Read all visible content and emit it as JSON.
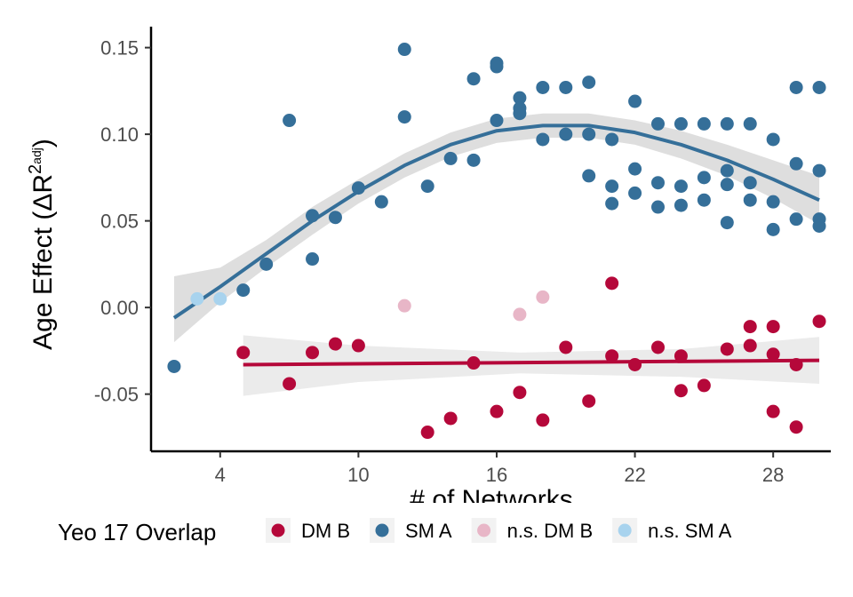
{
  "chart_data": {
    "type": "scatter",
    "title": "",
    "xlabel": "# of Networks",
    "ylabel_main": "Age Effect (",
    "ylabel_delta": "Δ",
    "ylabel_r": "R",
    "ylabel_sup_num": "2",
    "ylabel_sup_sub": "adj",
    "ylabel_close": ")",
    "xlim": [
      1.0,
      30.5
    ],
    "ylim": [
      -0.083,
      0.158
    ],
    "x_ticks": [
      4,
      10,
      16,
      22,
      28
    ],
    "x_tick_labels": [
      "4",
      "10",
      "16",
      "22",
      "28"
    ],
    "y_ticks": [
      -0.05,
      0.0,
      0.05,
      0.1,
      0.15
    ],
    "y_tick_labels": [
      "-0.05",
      "0.00",
      "0.05",
      "0.10",
      "0.15"
    ],
    "grid": false,
    "legend": {
      "position": "bottom",
      "title": "Yeo 17 Overlap",
      "entries": [
        {
          "label": "DM B",
          "color": "#b5083a"
        },
        {
          "label": "SM A",
          "color": "#356f99"
        },
        {
          "label": "n.s. DM B",
          "color": "#e8b6c7"
        },
        {
          "label": "n.s. SM A",
          "color": "#a8d3ee"
        }
      ]
    },
    "series": [
      {
        "name": "DM B",
        "color": "#b5083a",
        "points": [
          [
            5,
            -0.026
          ],
          [
            7,
            -0.044
          ],
          [
            8,
            -0.026
          ],
          [
            9,
            -0.021
          ],
          [
            10,
            -0.022
          ],
          [
            13,
            -0.072
          ],
          [
            14,
            -0.064
          ],
          [
            15,
            -0.032
          ],
          [
            16,
            -0.06
          ],
          [
            17,
            -0.049
          ],
          [
            18,
            -0.065
          ],
          [
            19,
            -0.023
          ],
          [
            20,
            -0.054
          ],
          [
            21,
            0.014
          ],
          [
            21,
            -0.028
          ],
          [
            22,
            -0.033
          ],
          [
            23,
            -0.023
          ],
          [
            24,
            -0.028
          ],
          [
            24,
            -0.048
          ],
          [
            25,
            -0.045
          ],
          [
            26,
            -0.024
          ],
          [
            27,
            -0.011
          ],
          [
            27,
            -0.022
          ],
          [
            28,
            -0.011
          ],
          [
            28,
            -0.027
          ],
          [
            28,
            -0.06
          ],
          [
            29,
            -0.033
          ],
          [
            29,
            -0.069
          ],
          [
            30,
            -0.008
          ]
        ],
        "fit": [
          [
            5,
            -0.033
          ],
          [
            30,
            -0.0305
          ]
        ],
        "band": [
          {
            "x": 5,
            "lo": -0.051,
            "hi": -0.016
          },
          {
            "x": 10,
            "lo": -0.043,
            "hi": -0.022
          },
          {
            "x": 17,
            "lo": -0.038,
            "hi": -0.026
          },
          {
            "x": 24,
            "lo": -0.04,
            "hi": -0.024
          },
          {
            "x": 30,
            "lo": -0.044,
            "hi": -0.017
          }
        ]
      },
      {
        "name": "SM A",
        "color": "#356f99",
        "points": [
          [
            2,
            -0.034
          ],
          [
            5,
            0.01
          ],
          [
            6,
            0.025
          ],
          [
            7,
            0.108
          ],
          [
            8,
            0.053
          ],
          [
            8,
            0.028
          ],
          [
            9,
            0.052
          ],
          [
            10,
            0.069
          ],
          [
            11,
            0.061
          ],
          [
            12,
            0.149
          ],
          [
            12,
            0.11
          ],
          [
            13,
            0.07
          ],
          [
            14,
            0.086
          ],
          [
            15,
            0.132
          ],
          [
            15,
            0.085
          ],
          [
            16,
            0.141
          ],
          [
            16,
            0.139
          ],
          [
            16,
            0.108
          ],
          [
            17,
            0.121
          ],
          [
            17,
            0.115
          ],
          [
            17,
            0.112
          ],
          [
            18,
            0.127
          ],
          [
            18,
            0.097
          ],
          [
            19,
            0.127
          ],
          [
            19,
            0.1
          ],
          [
            20,
            0.13
          ],
          [
            20,
            0.1
          ],
          [
            20,
            0.076
          ],
          [
            21,
            0.097
          ],
          [
            21,
            0.07
          ],
          [
            21,
            0.06
          ],
          [
            22,
            0.119
          ],
          [
            22,
            0.08
          ],
          [
            22,
            0.066
          ],
          [
            23,
            0.106
          ],
          [
            23,
            0.072
          ],
          [
            23,
            0.058
          ],
          [
            24,
            0.106
          ],
          [
            24,
            0.07
          ],
          [
            24,
            0.059
          ],
          [
            25,
            0.106
          ],
          [
            25,
            0.075
          ],
          [
            25,
            0.062
          ],
          [
            26,
            0.106
          ],
          [
            26,
            0.079
          ],
          [
            26,
            0.071
          ],
          [
            26,
            0.049
          ],
          [
            27,
            0.106
          ],
          [
            27,
            0.072
          ],
          [
            27,
            0.062
          ],
          [
            28,
            0.097
          ],
          [
            28,
            0.061
          ],
          [
            28,
            0.045
          ],
          [
            29,
            0.127
          ],
          [
            29,
            0.083
          ],
          [
            29,
            0.051
          ],
          [
            30,
            0.127
          ],
          [
            30,
            0.079
          ],
          [
            30,
            0.051
          ],
          [
            30,
            0.047
          ]
        ],
        "fit": [
          [
            2,
            -0.006
          ],
          [
            4,
            0.012
          ],
          [
            6,
            0.031
          ],
          [
            8,
            0.05
          ],
          [
            10,
            0.067
          ],
          [
            12,
            0.082
          ],
          [
            14,
            0.094
          ],
          [
            16,
            0.102
          ],
          [
            18,
            0.105
          ],
          [
            20,
            0.105
          ],
          [
            22,
            0.101
          ],
          [
            24,
            0.094
          ],
          [
            26,
            0.085
          ],
          [
            28,
            0.074
          ],
          [
            30,
            0.062
          ]
        ],
        "band": [
          {
            "x": 2,
            "lo": -0.02,
            "hi": 0.018
          },
          {
            "x": 4,
            "lo": 0.003,
            "hi": 0.023
          },
          {
            "x": 6,
            "lo": 0.023,
            "hi": 0.039
          },
          {
            "x": 8,
            "lo": 0.042,
            "hi": 0.058
          },
          {
            "x": 10,
            "lo": 0.06,
            "hi": 0.074
          },
          {
            "x": 12,
            "lo": 0.075,
            "hi": 0.089
          },
          {
            "x": 14,
            "lo": 0.087,
            "hi": 0.101
          },
          {
            "x": 16,
            "lo": 0.095,
            "hi": 0.109
          },
          {
            "x": 18,
            "lo": 0.098,
            "hi": 0.112
          },
          {
            "x": 20,
            "lo": 0.098,
            "hi": 0.112
          },
          {
            "x": 22,
            "lo": 0.094,
            "hi": 0.108
          },
          {
            "x": 24,
            "lo": 0.086,
            "hi": 0.102
          },
          {
            "x": 26,
            "lo": 0.076,
            "hi": 0.094
          },
          {
            "x": 28,
            "lo": 0.063,
            "hi": 0.085
          },
          {
            "x": 30,
            "lo": 0.048,
            "hi": 0.076
          }
        ]
      },
      {
        "name": "n.s. DM B",
        "color": "#e8b6c7",
        "points": [
          [
            12,
            0.001
          ],
          [
            17,
            -0.004
          ],
          [
            18,
            0.006
          ]
        ]
      },
      {
        "name": "n.s. SM A",
        "color": "#a8d3ee",
        "points": [
          [
            3,
            0.005
          ],
          [
            4,
            0.005
          ]
        ]
      }
    ]
  }
}
